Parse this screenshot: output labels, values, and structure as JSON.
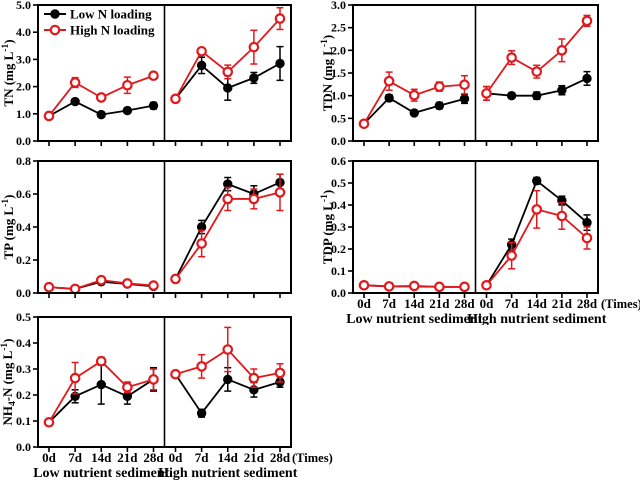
{
  "figure": {
    "background": "#ffffff",
    "accent_red": "#e2191c",
    "series_black": "#000000",
    "times_label": "(Times)",
    "x_categories": [
      "0d",
      "7d",
      "14d",
      "21d",
      "28d"
    ],
    "group_labels": [
      "Low nutrient sediment",
      "High nutrient sediment"
    ],
    "legend": [
      {
        "label": "Low N loading",
        "marker": "filled",
        "color": "#000000"
      },
      {
        "label": "High N loading",
        "marker": "open",
        "color": "#e2191c"
      }
    ]
  },
  "chart_data": [
    {
      "id": "tn",
      "type": "line",
      "ylabel": "TN (mg L-1)",
      "ylabel_segments": [
        {
          "t": "TN (mg L"
        },
        {
          "t": "-1",
          "sup": true
        },
        {
          "t": ")"
        }
      ],
      "ylim": [
        0,
        5
      ],
      "ytick_values": [
        0,
        1,
        2,
        3,
        4,
        5
      ],
      "ytick_labels": [
        "0.0",
        "1.0",
        "2.0",
        "3.0",
        "4.0",
        "5.0"
      ],
      "categories": [
        "0d",
        "7d",
        "14d",
        "21d",
        "28d"
      ],
      "show_legend": true,
      "panels": [
        {
          "name": "Low nutrient sediment",
          "series": [
            {
              "name": "Low N loading",
              "marker": "filled",
              "color": "#000000",
              "values": [
                0.92,
                1.45,
                0.97,
                1.12,
                1.3
              ],
              "errors": [
                0.05,
                0.1,
                0.08,
                0.1,
                0.12
              ]
            },
            {
              "name": "High N loading",
              "marker": "open",
              "color": "#e2191c",
              "values": [
                0.92,
                2.15,
                1.6,
                2.05,
                2.4
              ],
              "errors": [
                0.05,
                0.18,
                0.1,
                0.3,
                0.12
              ]
            }
          ]
        },
        {
          "name": "High nutrient sediment",
          "series": [
            {
              "name": "Low N loading",
              "marker": "filled",
              "color": "#000000",
              "values": [
                1.55,
                2.78,
                1.95,
                2.32,
                2.85
              ],
              "errors": [
                0.06,
                0.3,
                0.45,
                0.2,
                0.62
              ]
            },
            {
              "name": "High N loading",
              "marker": "open",
              "color": "#e2191c",
              "values": [
                1.55,
                3.3,
                2.54,
                3.45,
                4.5
              ],
              "errors": [
                0.06,
                0.12,
                0.25,
                0.62,
                0.4
              ]
            }
          ]
        }
      ]
    },
    {
      "id": "tdn",
      "type": "line",
      "ylabel": "TDN (mg L-1)",
      "ylabel_segments": [
        {
          "t": "TDN (mg L"
        },
        {
          "t": "-1",
          "sup": true
        },
        {
          "t": ")"
        }
      ],
      "ylim": [
        0,
        3
      ],
      "ytick_values": [
        0,
        0.5,
        1,
        1.5,
        2,
        2.5,
        3
      ],
      "ytick_labels": [
        "0.0",
        "0.5",
        "1.0",
        "1.5",
        "2.0",
        "2.5",
        "3.0"
      ],
      "categories": [
        "0d",
        "7d",
        "14d",
        "21d",
        "28d"
      ],
      "show_legend": false,
      "panels": [
        {
          "name": "Low nutrient sediment",
          "series": [
            {
              "name": "Low N loading",
              "marker": "filled",
              "color": "#000000",
              "values": [
                0.38,
                0.95,
                0.62,
                0.78,
                0.93
              ],
              "errors": [
                0.03,
                0.07,
                0.06,
                0.07,
                0.1
              ]
            },
            {
              "name": "High N loading",
              "marker": "open",
              "color": "#e2191c",
              "values": [
                0.38,
                1.32,
                1.01,
                1.2,
                1.24
              ],
              "errors": [
                0.03,
                0.2,
                0.13,
                0.1,
                0.2
              ]
            }
          ]
        },
        {
          "name": "High nutrient sediment",
          "series": [
            {
              "name": "Low N loading",
              "marker": "filled",
              "color": "#000000",
              "values": [
                1.05,
                1.0,
                1.0,
                1.12,
                1.38
              ],
              "errors": [
                0.15,
                0.06,
                0.08,
                0.1,
                0.15
              ]
            },
            {
              "name": "High N loading",
              "marker": "open",
              "color": "#e2191c",
              "values": [
                1.05,
                1.84,
                1.53,
                2.0,
                2.65
              ],
              "errors": [
                0.15,
                0.15,
                0.14,
                0.25,
                0.12
              ]
            }
          ]
        }
      ]
    },
    {
      "id": "tp",
      "type": "line",
      "ylabel": "TP (mg L-1)",
      "ylabel_segments": [
        {
          "t": "TP (mg L"
        },
        {
          "t": "-1",
          "sup": true
        },
        {
          "t": ")"
        }
      ],
      "ylim": [
        0,
        0.8
      ],
      "ytick_values": [
        0,
        0.2,
        0.4,
        0.6,
        0.8
      ],
      "ytick_labels": [
        "0.0",
        "0.2",
        "0.4",
        "0.6",
        "0.8"
      ],
      "categories": [
        "0d",
        "7d",
        "14d",
        "21d",
        "28d"
      ],
      "show_legend": false,
      "panels": [
        {
          "name": "Low nutrient sediment",
          "series": [
            {
              "name": "Low N loading",
              "marker": "filled",
              "color": "#000000",
              "values": [
                0.035,
                0.025,
                0.068,
                0.055,
                0.04
              ],
              "errors": [
                0.008,
                0.008,
                0.012,
                0.01,
                0.008
              ]
            },
            {
              "name": "High N loading",
              "marker": "open",
              "color": "#e2191c",
              "values": [
                0.035,
                0.025,
                0.078,
                0.058,
                0.045
              ],
              "errors": [
                0.008,
                0.008,
                0.018,
                0.012,
                0.01
              ]
            }
          ]
        },
        {
          "name": "High nutrient sediment",
          "series": [
            {
              "name": "Low N loading",
              "marker": "filled",
              "color": "#000000",
              "values": [
                0.085,
                0.4,
                0.66,
                0.6,
                0.67
              ],
              "errors": [
                0.01,
                0.04,
                0.04,
                0.05,
                0.05
              ]
            },
            {
              "name": "High N loading",
              "marker": "open",
              "color": "#e2191c",
              "values": [
                0.085,
                0.3,
                0.57,
                0.57,
                0.61
              ],
              "errors": [
                0.01,
                0.08,
                0.07,
                0.06,
                0.11
              ]
            }
          ]
        }
      ]
    },
    {
      "id": "tdp",
      "type": "line",
      "ylabel": "TDP (mg L-1)",
      "ylabel_segments": [
        {
          "t": "TDP (mg L"
        },
        {
          "t": "-1",
          "sup": true
        },
        {
          "t": ")"
        }
      ],
      "ylim": [
        0,
        0.6
      ],
      "ytick_values": [
        0,
        0.1,
        0.2,
        0.3,
        0.4,
        0.5,
        0.6
      ],
      "ytick_labels": [
        "0.0",
        "0.1",
        "0.2",
        "0.3",
        "0.4",
        "0.5",
        "0.6"
      ],
      "categories": [
        "0d",
        "7d",
        "14d",
        "21d",
        "28d"
      ],
      "show_legend": false,
      "panels": [
        {
          "name": "Low nutrient sediment",
          "series": [
            {
              "name": "Low N loading",
              "marker": "filled",
              "color": "#000000",
              "values": [
                0.035,
                0.03,
                0.03,
                0.028,
                0.028
              ],
              "errors": [
                0.004,
                0.004,
                0.005,
                0.004,
                0.004
              ]
            },
            {
              "name": "High N loading",
              "marker": "open",
              "color": "#e2191c",
              "values": [
                0.035,
                0.03,
                0.032,
                0.028,
                0.028
              ],
              "errors": [
                0.005,
                0.005,
                0.006,
                0.005,
                0.005
              ]
            }
          ]
        },
        {
          "name": "High nutrient sediment",
          "series": [
            {
              "name": "Low N loading",
              "marker": "filled",
              "color": "#000000",
              "values": [
                0.035,
                0.22,
                0.51,
                0.42,
                0.32
              ],
              "errors": [
                0.005,
                0.025,
                0.015,
                0.02,
                0.035
              ]
            },
            {
              "name": "High N loading",
              "marker": "open",
              "color": "#e2191c",
              "values": [
                0.035,
                0.17,
                0.38,
                0.35,
                0.25
              ],
              "errors": [
                0.005,
                0.06,
                0.085,
                0.06,
                0.05
              ]
            }
          ]
        }
      ]
    },
    {
      "id": "nh4",
      "type": "line",
      "ylabel": "NH4-N (mg L-1)",
      "ylabel_segments": [
        {
          "t": "NH"
        },
        {
          "t": "4",
          "sub": true
        },
        {
          "t": "-N (mg L"
        },
        {
          "t": "-1",
          "sup": true
        },
        {
          "t": ")"
        }
      ],
      "ylim": [
        0,
        0.5
      ],
      "ytick_values": [
        0,
        0.1,
        0.2,
        0.3,
        0.4,
        0.5
      ],
      "ytick_labels": [
        "0.0",
        "0.1",
        "0.2",
        "0.3",
        "0.4",
        "0.5"
      ],
      "categories": [
        "0d",
        "7d",
        "14d",
        "21d",
        "28d"
      ],
      "show_legend": false,
      "panels": [
        {
          "name": "Low nutrient sediment",
          "series": [
            {
              "name": "Low N loading",
              "marker": "filled",
              "color": "#000000",
              "values": [
                0.095,
                0.195,
                0.24,
                0.195,
                0.26
              ],
              "errors": [
                0.012,
                0.025,
                0.075,
                0.03,
                0.045
              ]
            },
            {
              "name": "High N loading",
              "marker": "open",
              "color": "#e2191c",
              "values": [
                0.095,
                0.265,
                0.33,
                0.23,
                0.26
              ],
              "errors": [
                0.012,
                0.06,
                0.015,
                0.02,
                0.04
              ]
            }
          ]
        },
        {
          "name": "High nutrient sediment",
          "series": [
            {
              "name": "Low N loading",
              "marker": "filled",
              "color": "#000000",
              "values": [
                0.28,
                0.13,
                0.26,
                0.22,
                0.25
              ],
              "errors": [
                0.01,
                0.015,
                0.045,
                0.028,
                0.02
              ]
            },
            {
              "name": "High N loading",
              "marker": "open",
              "color": "#e2191c",
              "values": [
                0.28,
                0.31,
                0.375,
                0.265,
                0.285
              ],
              "errors": [
                0.01,
                0.045,
                0.085,
                0.035,
                0.035
              ]
            }
          ]
        }
      ]
    }
  ]
}
